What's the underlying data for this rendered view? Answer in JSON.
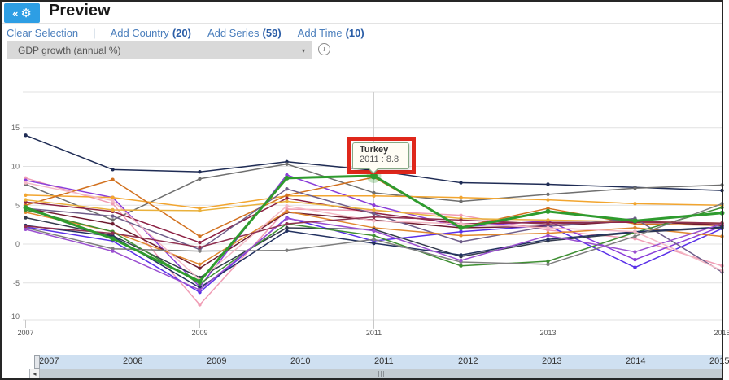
{
  "header": {
    "title": "Preview",
    "collapse_button": {
      "chevrons": "«",
      "gear": "⚙"
    }
  },
  "toolbar": {
    "clear_selection": "Clear Selection",
    "separator": "|",
    "add_country": {
      "label": "Add Country",
      "count": "(20)"
    },
    "add_series": {
      "label": "Add Series",
      "count": "(59)"
    },
    "add_time": {
      "label": "Add Time",
      "count": "(10)"
    }
  },
  "series_dropdown": {
    "selected": "GDP growth (annual %)",
    "caret": "▾",
    "info_glyph": "i"
  },
  "tooltip": {
    "title": "Turkey",
    "detail": "2011 : 8.8"
  },
  "chart_data": {
    "type": "line",
    "title": "",
    "xlabel": "",
    "ylabel": "",
    "x": [
      2007,
      2008,
      2009,
      2010,
      2011,
      2012,
      2013,
      2014,
      2015
    ],
    "x_tick_labels": [
      "2007",
      "2009",
      "2011",
      "2013",
      "2015"
    ],
    "y_ticks": [
      15,
      10,
      5,
      0,
      -5,
      -10
    ],
    "ylim": [
      -10,
      19.5
    ],
    "grid": true,
    "legend_position": "none",
    "hover_year": 2011,
    "highlighted_point": {
      "series": "Turkey",
      "year": 2011,
      "value": 8.8,
      "color": "#2e9b2e"
    },
    "series": [
      {
        "name": "navy",
        "color": "#1f2c55",
        "values": [
          14.0,
          9.6,
          9.3,
          10.6,
          9.5,
          7.9,
          7.7,
          7.3,
          6.9
        ]
      },
      {
        "name": "gray",
        "color": "#6f6f6f",
        "values": [
          7.7,
          3.1,
          8.4,
          10.3,
          6.6,
          5.5,
          6.4,
          7.2,
          7.6
        ]
      },
      {
        "name": "pink",
        "color": "#f09cb4",
        "values": [
          8.5,
          5.2,
          -7.8,
          4.5,
          4.3,
          3.7,
          1.8,
          0.7,
          -2.8
        ]
      },
      {
        "name": "violet",
        "color": "#8a3dd9",
        "values": [
          8.2,
          6.0,
          -5.5,
          8.9,
          5.0,
          2.2,
          3.0,
          -2.0,
          2.3
        ]
      },
      {
        "name": "blue-violet",
        "color": "#5a30e8",
        "values": [
          2.2,
          0.4,
          -6.2,
          3.4,
          0.4,
          1.6,
          2.4,
          -3.0,
          2.0
        ]
      },
      {
        "name": "amber",
        "color": "#f2a52f",
        "values": [
          6.3,
          6.0,
          4.6,
          6.2,
          6.2,
          6.0,
          5.7,
          5.2,
          5.0
        ]
      },
      {
        "name": "dark-orange",
        "color": "#d2711f",
        "values": [
          5.0,
          8.3,
          1.0,
          6.3,
          8.6,
          2.2,
          4.6,
          2.6,
          2.4
        ]
      },
      {
        "name": "maroon",
        "color": "#8c2144",
        "values": [
          5.4,
          4.2,
          0.2,
          5.9,
          4.0,
          2.6,
          2.8,
          2.8,
          2.6
        ]
      },
      {
        "name": "dark-red",
        "color": "#6d1b2f",
        "values": [
          4.6,
          2.6,
          -3.1,
          4.1,
          3.1,
          2.1,
          2.3,
          3.0,
          2.4
        ]
      },
      {
        "name": "slate-purple",
        "color": "#6f5e8a",
        "values": [
          4.6,
          3.6,
          -0.7,
          7.1,
          3.9,
          0.3,
          2.3,
          3.3,
          -3.6
        ]
      },
      {
        "name": "orange",
        "color": "#e0882e",
        "values": [
          4.1,
          1.6,
          -2.6,
          4.2,
          2.1,
          1.1,
          1.4,
          2.1,
          1.0
        ]
      },
      {
        "name": "charcoal",
        "color": "#343b4d",
        "values": [
          3.4,
          1.1,
          -4.3,
          2.1,
          1.9,
          -1.6,
          0.4,
          1.5,
          2.1
        ]
      },
      {
        "name": "dark-green",
        "color": "#3f8f33",
        "values": [
          4.4,
          1.6,
          -5.1,
          2.6,
          1.1,
          -2.8,
          -2.2,
          1.5,
          4.7
        ]
      },
      {
        "name": "navy-2",
        "color": "#223160",
        "values": [
          2.4,
          1.0,
          -5.6,
          1.7,
          0.1,
          -1.4,
          0.6,
          1.6,
          2.2
        ]
      },
      {
        "name": "gray-2",
        "color": "#7e7e7e",
        "values": [
          2.1,
          -0.6,
          -0.9,
          -0.8,
          0.6,
          -2.3,
          -2.6,
          1.0,
          5.2
        ]
      },
      {
        "name": "purple",
        "color": "#9a4fd0",
        "values": [
          1.9,
          -0.9,
          -5.9,
          3.3,
          1.7,
          -2.1,
          1.1,
          -1.0,
          2.6
        ]
      },
      {
        "name": "light-pink",
        "color": "#f4b9c6",
        "values": [
          7.9,
          5.6,
          -4.6,
          4.9,
          3.0,
          2.6,
          2.1,
          1.6,
          -3.4
        ]
      },
      {
        "name": "gold",
        "color": "#eab13c",
        "values": [
          5.7,
          4.4,
          4.3,
          5.5,
          4.4,
          3.3,
          3.1,
          2.9,
          2.7
        ]
      },
      {
        "name": "wine",
        "color": "#8f3050",
        "values": [
          2.3,
          1.4,
          -0.4,
          2.6,
          3.5,
          3.1,
          2.6,
          2.9,
          2.7
        ]
      },
      {
        "name": "Turkey",
        "color": "#2e9b2e",
        "emphasis": true,
        "values": [
          4.7,
          0.7,
          -4.8,
          8.5,
          8.8,
          2.1,
          4.2,
          3.0,
          4.0
        ]
      }
    ]
  },
  "time_slider": {
    "years": [
      "2007",
      "2008",
      "2009",
      "2010",
      "2011",
      "2012",
      "2013",
      "2014",
      "2015"
    ]
  },
  "scrollbar": {
    "left_arrow": "◂"
  },
  "colors": {
    "accent_blue": "#2d9ee4",
    "link_blue": "#4a7ebc",
    "highlight_red": "#df271b",
    "tooltip_border": "#84a884",
    "slider_band": "#cfe0f1"
  }
}
